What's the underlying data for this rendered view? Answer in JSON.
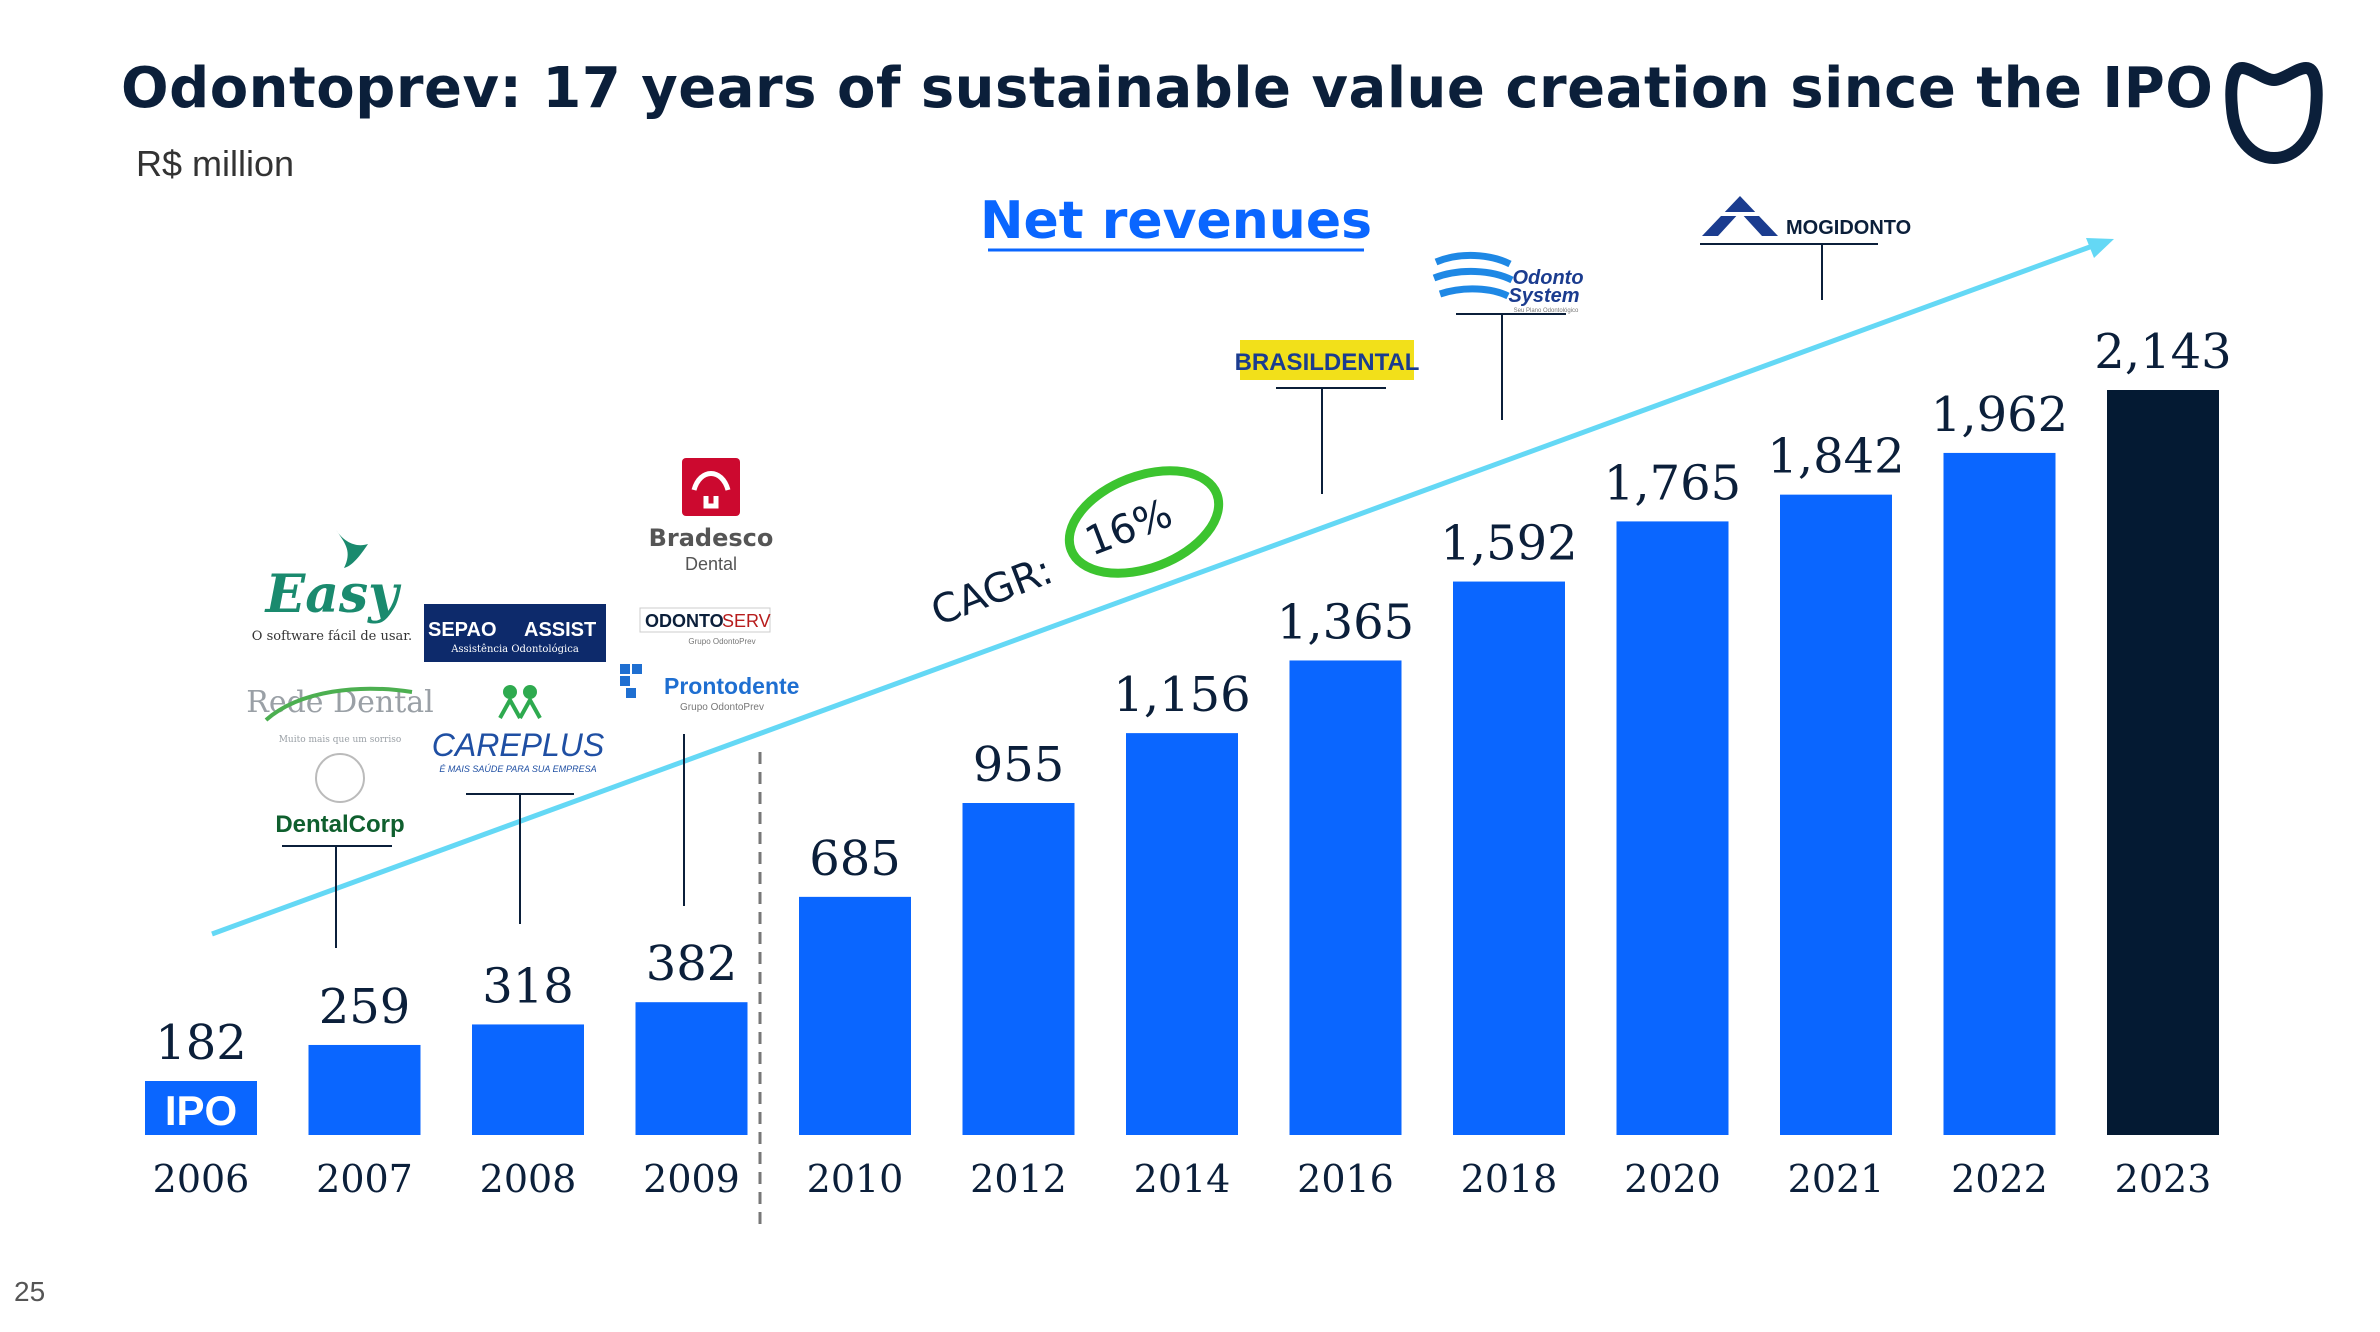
{
  "slide": {
    "title": "Odontoprev: 17 years of sustainable value creation since the IPO",
    "subtitle": "R$ million",
    "page_number": "25"
  },
  "chart_data": {
    "type": "bar",
    "title": "Net revenues",
    "categories": [
      "2006",
      "2007",
      "2008",
      "2009",
      "2010",
      "2012",
      "2014",
      "2016",
      "2018",
      "2020",
      "2021",
      "2022",
      "2023"
    ],
    "values": [
      182,
      259,
      318,
      382,
      685,
      955,
      1156,
      1365,
      1592,
      1765,
      1842,
      1962,
      2143
    ],
    "value_labels": [
      "182",
      "259",
      "318",
      "382",
      "685",
      "955",
      "1,156",
      "1,365",
      "1,592",
      "1,765",
      "1,842",
      "1,962",
      "2,143"
    ],
    "ylim": [
      0,
      2143
    ],
    "xlabel": "",
    "ylabel": "",
    "grid": false,
    "bar_color": "#0a66ff",
    "highlight_color": "#041a33",
    "highlight_category": "2023",
    "cagr_label": "CAGR:",
    "cagr_value": "16%",
    "ipo_label": "IPO",
    "trend_color": "#64d8f5"
  },
  "acquisitions": [
    {
      "year": "2007",
      "logos": [
        "Easy",
        "O software fácil de usar.",
        "Rede Dental",
        "Muito mais que um sorriso",
        "DentalCorp"
      ]
    },
    {
      "year": "2008",
      "logos": [
        "SEPAO",
        "ASSIST",
        "Assistência Odontológica",
        "CAREPLUS",
        "É MAIS SAÚDE PARA SUA EMPRESA"
      ]
    },
    {
      "year": "2009",
      "logos": [
        "Bradesco",
        "Dental",
        "ODONTO",
        "SERV",
        "Grupo OdontoPrev",
        "Prontodente",
        "Grupo OdontoPrev"
      ]
    },
    {
      "year": "2016",
      "logos": [
        "BRASILDENTAL"
      ]
    },
    {
      "year": "2018",
      "logos": [
        "Odonto",
        "System",
        "Seu Plano Odontológico"
      ]
    },
    {
      "year": "2021",
      "logos": [
        "MOGIDONTO"
      ]
    }
  ],
  "icons": {
    "brand": "tooth-icon"
  }
}
